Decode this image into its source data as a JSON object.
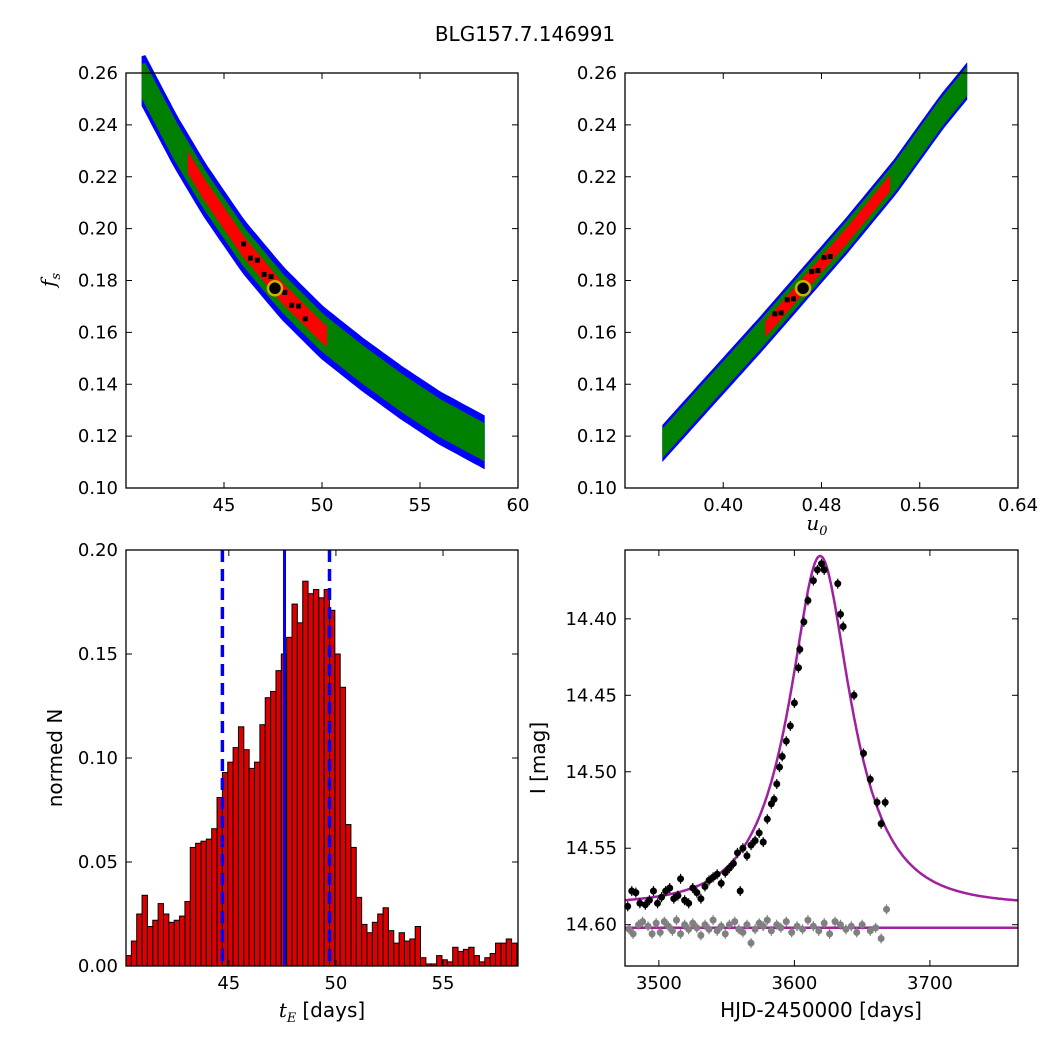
{
  "title": "BLG157.7.146991",
  "colors": {
    "outer_contour": "#0000ff",
    "middle_contour": "#008000",
    "inner_contour": "#ff0000",
    "samples": "#000000",
    "best_fit_marker": "#c8b400",
    "hist_bars": "#dd0000",
    "hist_lines": "#0000ee",
    "model_curve": "#a020a0",
    "data_points": "#000000",
    "residual_points": "#808080"
  },
  "chart_data": [
    {
      "type": "heatmap",
      "name": "fs-vs-tE",
      "xlabel": "",
      "ylabel_main": "f",
      "ylabel_sub": "s",
      "xlim": [
        40,
        60
      ],
      "ylim": [
        0.1,
        0.26
      ],
      "xticks": [
        "45",
        "50",
        "55",
        "60"
      ],
      "yticks": [
        "0.10",
        "0.12",
        "0.14",
        "0.16",
        "0.18",
        "0.20",
        "0.22",
        "0.24",
        "0.26"
      ],
      "best_fit": {
        "x": 47.6,
        "y": 0.177
      },
      "ridge": [
        [
          40.9,
          0.257
        ],
        [
          42.5,
          0.234
        ],
        [
          44.0,
          0.215
        ],
        [
          46.0,
          0.193
        ],
        [
          48.0,
          0.175
        ],
        [
          50.0,
          0.16
        ],
        [
          52.0,
          0.148
        ],
        [
          54.0,
          0.137
        ],
        [
          56.0,
          0.127
        ],
        [
          58.2,
          0.118
        ]
      ],
      "widths": {
        "outer": 0.0095,
        "middle": 0.0065,
        "inner": 0.0035
      },
      "inner_range": [
        43.2,
        50.2
      ]
    },
    {
      "type": "heatmap",
      "name": "fs-vs-u0",
      "xlabel_main": "u",
      "xlabel_sub": "0",
      "xlim": [
        0.32,
        0.64
      ],
      "ylim": [
        0.1,
        0.26
      ],
      "xticks": [
        "0.40",
        "0.48",
        "0.56",
        "0.64"
      ],
      "yticks": [
        "0.10",
        "0.12",
        "0.14",
        "0.16",
        "0.18",
        "0.20",
        "0.22",
        "0.24",
        "0.26"
      ],
      "best_fit": {
        "x": 0.465,
        "y": 0.177
      },
      "ridge": [
        [
          0.352,
          0.118
        ],
        [
          0.39,
          0.138
        ],
        [
          0.43,
          0.159
        ],
        [
          0.465,
          0.178
        ],
        [
          0.5,
          0.197
        ],
        [
          0.54,
          0.22
        ],
        [
          0.578,
          0.245
        ],
        [
          0.597,
          0.256
        ]
      ],
      "widths": {
        "outer": 0.006,
        "middle": 0.0045,
        "inner": 0.0025
      },
      "inner_range": [
        0.435,
        0.535
      ]
    },
    {
      "type": "bar",
      "name": "tE-histogram",
      "xlabel_main": "t",
      "xlabel_sub": "E",
      "xlabel_unit": "[days]",
      "ylabel": "normed N",
      "xlim": [
        40.2,
        58.5
      ],
      "ylim": [
        0.0,
        0.2
      ],
      "xticks": [
        "45",
        "50",
        "55"
      ],
      "yticks": [
        "0.00",
        "0.05",
        "0.10",
        "0.15",
        "0.20"
      ],
      "bin_start": 40.2,
      "bin_width": 0.25,
      "values": [
        0.005,
        0.012,
        0.025,
        0.034,
        0.019,
        0.022,
        0.03,
        0.025,
        0.021,
        0.022,
        0.024,
        0.031,
        0.057,
        0.059,
        0.06,
        0.061,
        0.066,
        0.081,
        0.093,
        0.098,
        0.105,
        0.115,
        0.104,
        0.095,
        0.098,
        0.116,
        0.129,
        0.132,
        0.142,
        0.15,
        0.158,
        0.174,
        0.165,
        0.185,
        0.179,
        0.181,
        0.177,
        0.181,
        0.171,
        0.15,
        0.134,
        0.068,
        0.057,
        0.033,
        0.02,
        0.016,
        0.021,
        0.025,
        0.028,
        0.017,
        0.011,
        0.016,
        0.012,
        0.013,
        0.019,
        0.004,
        0.001,
        0.001,
        0.005,
        0.003,
        0.002,
        0.009,
        0.007,
        0.008,
        0.009,
        0.005,
        0.002,
        0.004,
        0.006,
        0.011,
        0.011,
        0.013,
        0.011,
        0.005,
        0.003,
        0.005,
        0.011,
        0.013,
        0.005,
        0.004,
        0.006,
        0.002
      ],
      "median": 47.6,
      "bounds": [
        44.7,
        49.7
      ]
    },
    {
      "type": "scatter",
      "name": "light-curve",
      "xlabel": "HJD-2450000 [days]",
      "ylabel": "I [mag]",
      "xlim": [
        3475,
        3765
      ],
      "ylim": [
        14.627,
        14.355
      ],
      "xticks": [
        "3500",
        "3600",
        "3700"
      ],
      "yticks": [
        "14.40",
        "14.45",
        "14.50",
        "14.55",
        "14.60"
      ],
      "model": {
        "t0": 3619,
        "tE": 47.6,
        "u0": 0.465,
        "fs": 0.177,
        "I_base": 14.587
      },
      "baseline_line": 14.602,
      "data": [
        [
          3477,
          14.588
        ],
        [
          3480,
          14.578
        ],
        [
          3483,
          14.579
        ],
        [
          3486,
          14.586
        ],
        [
          3490,
          14.587
        ],
        [
          3493,
          14.584
        ],
        [
          3496,
          14.578
        ],
        [
          3499,
          14.586
        ],
        [
          3502,
          14.582
        ],
        [
          3505,
          14.578
        ],
        [
          3508,
          14.576
        ],
        [
          3511,
          14.583
        ],
        [
          3514,
          14.581
        ],
        [
          3516,
          14.57
        ],
        [
          3519,
          14.584
        ],
        [
          3522,
          14.586
        ],
        [
          3525,
          14.576
        ],
        [
          3528,
          14.579
        ],
        [
          3531,
          14.583
        ],
        [
          3534,
          14.575
        ],
        [
          3537,
          14.571
        ],
        [
          3540,
          14.569
        ],
        [
          3543,
          14.567
        ],
        [
          3546,
          14.573
        ],
        [
          3549,
          14.566
        ],
        [
          3552,
          14.563
        ],
        [
          3555,
          14.56
        ],
        [
          3558,
          14.553
        ],
        [
          3560,
          14.578
        ],
        [
          3562,
          14.55
        ],
        [
          3565,
          14.555
        ],
        [
          3568,
          14.548
        ],
        [
          3571,
          14.545
        ],
        [
          3574,
          14.54
        ],
        [
          3577,
          14.546
        ],
        [
          3580,
          14.531
        ],
        [
          3583,
          14.521
        ],
        [
          3585,
          14.518
        ],
        [
          3587,
          14.508
        ],
        [
          3589,
          14.497
        ],
        [
          3591,
          14.49
        ],
        [
          3594,
          14.48
        ],
        [
          3597,
          14.47
        ],
        [
          3600,
          14.455
        ],
        [
          3603,
          14.432
        ],
        [
          3604,
          14.42
        ],
        [
          3607,
          14.402
        ],
        [
          3610,
          14.388
        ],
        [
          3614,
          14.375
        ],
        [
          3617,
          14.368
        ],
        [
          3620,
          14.364
        ],
        [
          3622,
          14.368
        ],
        [
          3632,
          14.377
        ],
        [
          3634,
          14.397
        ],
        [
          3636,
          14.405
        ],
        [
          3644,
          14.45
        ],
        [
          3651,
          14.488
        ],
        [
          3656,
          14.505
        ],
        [
          3661,
          14.52
        ],
        [
          3664,
          14.534
        ],
        [
          3667,
          14.52
        ]
      ],
      "resid": [
        [
          3478,
          14.603
        ],
        [
          3481,
          14.606
        ],
        [
          3485,
          14.6
        ],
        [
          3488,
          14.598
        ],
        [
          3492,
          14.601
        ],
        [
          3495,
          14.606
        ],
        [
          3498,
          14.599
        ],
        [
          3501,
          14.605
        ],
        [
          3504,
          14.598
        ],
        [
          3507,
          14.601
        ],
        [
          3510,
          14.604
        ],
        [
          3513,
          14.597
        ],
        [
          3516,
          14.606
        ],
        [
          3519,
          14.6
        ],
        [
          3522,
          14.603
        ],
        [
          3525,
          14.599
        ],
        [
          3528,
          14.602
        ],
        [
          3531,
          14.607
        ],
        [
          3534,
          14.6
        ],
        [
          3537,
          14.603
        ],
        [
          3540,
          14.597
        ],
        [
          3543,
          14.604
        ],
        [
          3546,
          14.601
        ],
        [
          3549,
          14.606
        ],
        [
          3552,
          14.6
        ],
        [
          3556,
          14.598
        ],
        [
          3559,
          14.603
        ],
        [
          3562,
          14.605
        ],
        [
          3565,
          14.6
        ],
        [
          3568,
          14.612
        ],
        [
          3571,
          14.603
        ],
        [
          3574,
          14.599
        ],
        [
          3577,
          14.601
        ],
        [
          3580,
          14.597
        ],
        [
          3583,
          14.604
        ],
        [
          3587,
          14.6
        ],
        [
          3590,
          14.602
        ],
        [
          3594,
          14.598
        ],
        [
          3598,
          14.605
        ],
        [
          3602,
          14.601
        ],
        [
          3606,
          14.603
        ],
        [
          3610,
          14.597
        ],
        [
          3614,
          14.601
        ],
        [
          3618,
          14.604
        ],
        [
          3622,
          14.599
        ],
        [
          3626,
          14.606
        ],
        [
          3630,
          14.598
        ],
        [
          3634,
          14.6
        ],
        [
          3638,
          14.603
        ],
        [
          3642,
          14.601
        ],
        [
          3646,
          14.605
        ],
        [
          3650,
          14.6
        ],
        [
          3656,
          14.604
        ],
        [
          3660,
          14.602
        ],
        [
          3664,
          14.609
        ],
        [
          3668,
          14.59
        ]
      ]
    }
  ]
}
